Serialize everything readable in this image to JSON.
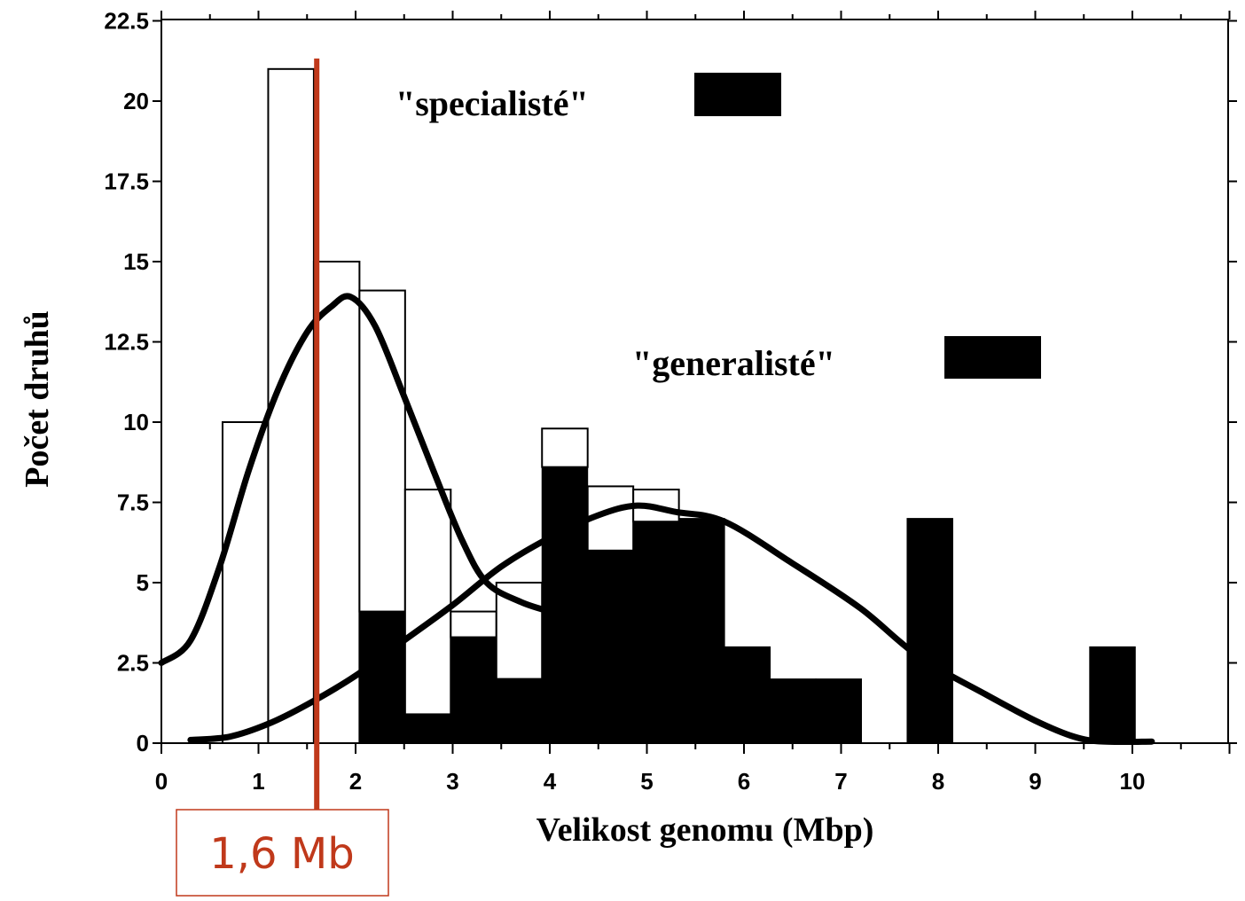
{
  "chart_data": {
    "type": "bar",
    "title": "",
    "xlabel": "Velikost genomu (Mbp)",
    "ylabel": "Počet druhů",
    "xlim": [
      0,
      11
    ],
    "ylim": [
      0,
      22.5
    ],
    "x_ticks": [
      "0",
      "1",
      "2",
      "3",
      "4",
      "5",
      "6",
      "7",
      "8",
      "9",
      "10"
    ],
    "y_ticks": [
      "0",
      "2.5",
      "5",
      "7.5",
      "10",
      "12.5",
      "15",
      "17.5",
      "20",
      "22.5"
    ],
    "bin_width": 0.47,
    "series": [
      {
        "name": "\"specialisté\"",
        "style": "open",
        "bins": [
          {
            "x": 0.63,
            "value": 10
          },
          {
            "x": 1.1,
            "value": 21
          },
          {
            "x": 1.57,
            "value": 15
          },
          {
            "x": 2.04,
            "value": 10
          },
          {
            "x": 2.51,
            "value": 7
          },
          {
            "x": 2.98,
            "value": 0.8
          },
          {
            "x": 3.45,
            "value": 3
          },
          {
            "x": 3.92,
            "value": 1.2
          },
          {
            "x": 4.39,
            "value": 2
          },
          {
            "x": 4.86,
            "value": 1
          }
        ]
      },
      {
        "name": "\"generalisté\"",
        "style": "filled",
        "bins": [
          {
            "x": 2.04,
            "value": 4.1
          },
          {
            "x": 2.51,
            "value": 0.9
          },
          {
            "x": 2.98,
            "value": 3.3
          },
          {
            "x": 3.45,
            "value": 2
          },
          {
            "x": 3.92,
            "value": 8.6
          },
          {
            "x": 4.39,
            "value": 6
          },
          {
            "x": 4.86,
            "value": 6.9
          },
          {
            "x": 5.33,
            "value": 7
          },
          {
            "x": 5.8,
            "value": 3
          },
          {
            "x": 6.27,
            "value": 2
          },
          {
            "x": 6.74,
            "value": 2
          },
          {
            "x": 7.68,
            "value": 7
          },
          {
            "x": 9.56,
            "value": 3
          }
        ]
      }
    ],
    "fit_curves": [
      {
        "series": "\"specialisté\"",
        "points": [
          [
            0,
            2.5
          ],
          [
            0.3,
            3.2
          ],
          [
            0.6,
            5.5
          ],
          [
            0.9,
            8.5
          ],
          [
            1.2,
            11
          ],
          [
            1.5,
            12.8
          ],
          [
            1.75,
            13.6
          ],
          [
            1.95,
            13.9
          ],
          [
            2.2,
            13
          ],
          [
            2.5,
            10.8
          ],
          [
            2.8,
            8.5
          ],
          [
            3.1,
            6.3
          ],
          [
            3.35,
            5
          ],
          [
            3.7,
            4.4
          ],
          [
            4.0,
            4.1
          ]
        ]
      },
      {
        "series": "\"generalisté\"",
        "points": [
          [
            0.3,
            0.1
          ],
          [
            0.7,
            0.2
          ],
          [
            1.1,
            0.6
          ],
          [
            1.5,
            1.2
          ],
          [
            2.0,
            2.1
          ],
          [
            2.5,
            3.2
          ],
          [
            3.0,
            4.3
          ],
          [
            3.5,
            5.5
          ],
          [
            4.0,
            6.4
          ],
          [
            4.5,
            7.1
          ],
          [
            4.9,
            7.4
          ],
          [
            5.3,
            7.2
          ],
          [
            5.8,
            6.9
          ],
          [
            6.5,
            5.6
          ],
          [
            7.2,
            4.2
          ],
          [
            7.8,
            2.7
          ],
          [
            8.5,
            1.5
          ],
          [
            9.0,
            0.7
          ],
          [
            9.4,
            0.2
          ],
          [
            9.7,
            0.05
          ],
          [
            10.2,
            0.05
          ]
        ]
      }
    ],
    "annotation": {
      "label": "1,6 Mb",
      "x": 1.6,
      "color": "#c0391b"
    },
    "legend_position": "top-right"
  }
}
